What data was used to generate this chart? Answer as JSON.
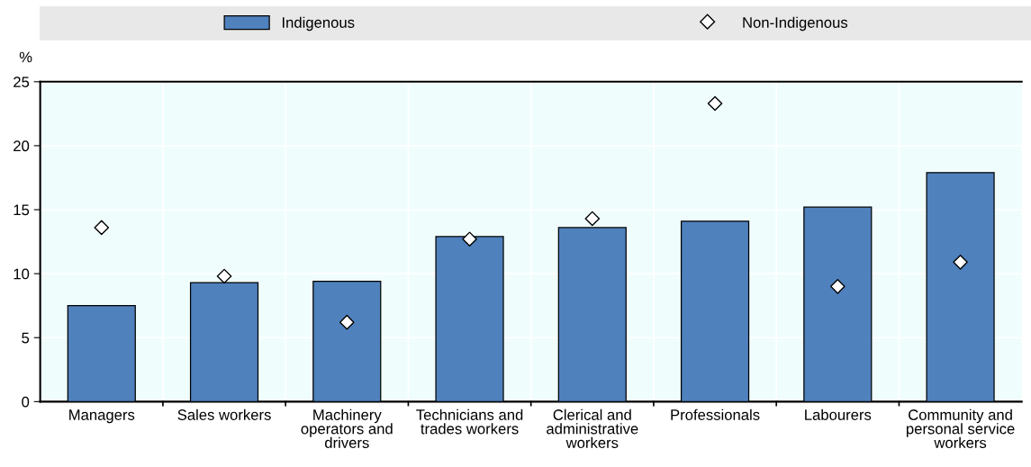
{
  "chart_data": {
    "type": "bar",
    "ylabel": "%",
    "categories": [
      "Managers",
      "Sales workers",
      "Machinery operators and drivers",
      "Technicians and trades workers",
      "Clerical and administrative workers",
      "Professionals",
      "Labourers",
      "Community and personal service workers"
    ],
    "series": [
      {
        "name": "Indigenous",
        "color": "#4f81bd",
        "values": [
          7.5,
          9.3,
          9.4,
          12.9,
          13.6,
          14.1,
          15.2,
          17.9
        ]
      },
      {
        "name": "Non-Indigenous",
        "type": "scatter",
        "color": "#ffffff",
        "marker": "diamond",
        "x": [
          "Managers",
          "Sales workers",
          "Machinery operators and drivers",
          "Technicians and trades workers",
          "Clerical and administrative workers",
          "Professionals",
          "Labourers",
          "Community and personal service workers"
        ],
        "values": [
          13.6,
          9.8,
          6.2,
          12.7,
          14.3,
          23.3,
          9.0,
          10.9
        ]
      }
    ],
    "ylim": [
      0,
      25
    ],
    "yticks": [
      0,
      5,
      10,
      15,
      20,
      25
    ],
    "grid": true,
    "legend": "top"
  }
}
